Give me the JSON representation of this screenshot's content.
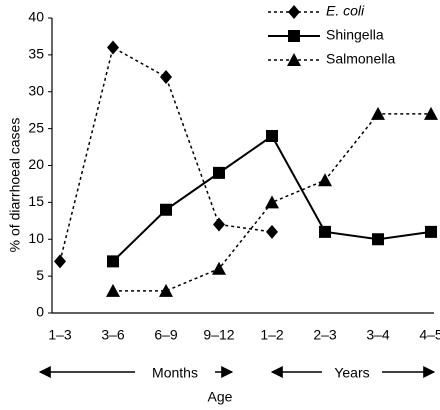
{
  "chart_data": {
    "type": "line",
    "categories": [
      "1–3",
      "3–6",
      "6–9",
      "9–12",
      "1–2",
      "2–3",
      "3–4",
      "4–5"
    ],
    "x_groups": [
      "Months",
      "Years"
    ],
    "x_label": "Age",
    "y_label": "% of diarrhoeal cases",
    "series": [
      {
        "name": "E. coli",
        "color": "#000000",
        "line_style": "dotted",
        "marker": "diamond",
        "values": [
          7,
          36,
          32,
          12,
          11,
          null,
          null,
          null
        ]
      },
      {
        "name": "Shingella",
        "color": "#000000",
        "line_style": "solid",
        "marker": "square",
        "values": [
          null,
          7,
          14,
          19,
          24,
          11,
          10,
          11
        ]
      },
      {
        "name": "Salmonella",
        "color": "#000000",
        "line_style": "dotted",
        "marker": "triangle",
        "values": [
          null,
          3,
          3,
          6,
          15,
          18,
          27,
          27
        ]
      }
    ],
    "ylim": [
      0,
      40
    ],
    "yticks": [
      0,
      5,
      10,
      15,
      20,
      25,
      30,
      35,
      40
    ],
    "legend": "top-right"
  }
}
